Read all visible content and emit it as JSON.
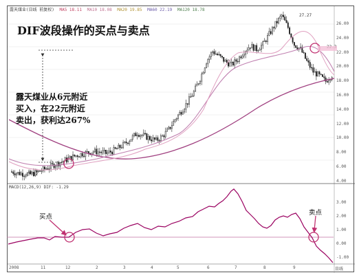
{
  "legend_top": {
    "stock": "露天煤业(日线 前复权)",
    "ma5": "MA5 18.11",
    "ma10": "MA10 18.08",
    "ma20": "MA20 19.85",
    "ma60": "MA60 22.19",
    "ma120": "MA120 18.78"
  },
  "legend_macd": "MACD(12,26,9)  DIF: -1.29",
  "title": "DIF波段操作的买点与卖点",
  "annotation": {
    "line1": "露天煤业从6元附近",
    "line2": "买入，在22元附近",
    "line3": "卖出，获利达267%"
  },
  "labels": {
    "buy": "买点",
    "sell": "卖点",
    "low_marker": "←3.92",
    "high_marker": "27.27",
    "sell_marker": "22.3"
  },
  "price_axis": [
    "26.00",
    "24.00",
    "22.00",
    "20.00",
    "18.00",
    "16.00",
    "14.00",
    "12.00",
    "10.00",
    "8.00",
    "6.00",
    "4.00"
  ],
  "macd_axis": [
    "3.00",
    "2.00",
    "1.00",
    "0.00",
    "-1.00"
  ],
  "date_axis": [
    "2008",
    "11",
    "12",
    "2",
    "3",
    "4",
    "5",
    "6",
    "7",
    "8",
    "9",
    "日线"
  ],
  "colors": {
    "candle_up": "#ffffff",
    "candle_down": "#222222",
    "ma_pink": "#d070a0",
    "circle": "#c03070",
    "arrow": "#c03070",
    "dif_line": "#9a0060"
  },
  "chart_data": {
    "type": "line",
    "series": [
      {
        "values": [
          4.3,
          4.1,
          4.0,
          3.95,
          4.2,
          4.6,
          5.0,
          5.4,
          5.8,
          6.2,
          6.6,
          6.9,
          7.1,
          7.3,
          7.2,
          7.0,
          7.3,
          7.8,
          8.4,
          9.2,
          10.0,
          9.6,
          9.2,
          8.9,
          9.5,
          10.5,
          12.0,
          13.2,
          14.5,
          16.0,
          18.0,
          20.5,
          22.0,
          21.3,
          20.5,
          20.0,
          20.8,
          22.0,
          22.8,
          22.3,
          23.0,
          24.5,
          26.0,
          27.27,
          25.5,
          23.0,
          22.3,
          20.5,
          19.0,
          18.4,
          17.6,
          18.5
        ]
      }
    ]
  }
}
